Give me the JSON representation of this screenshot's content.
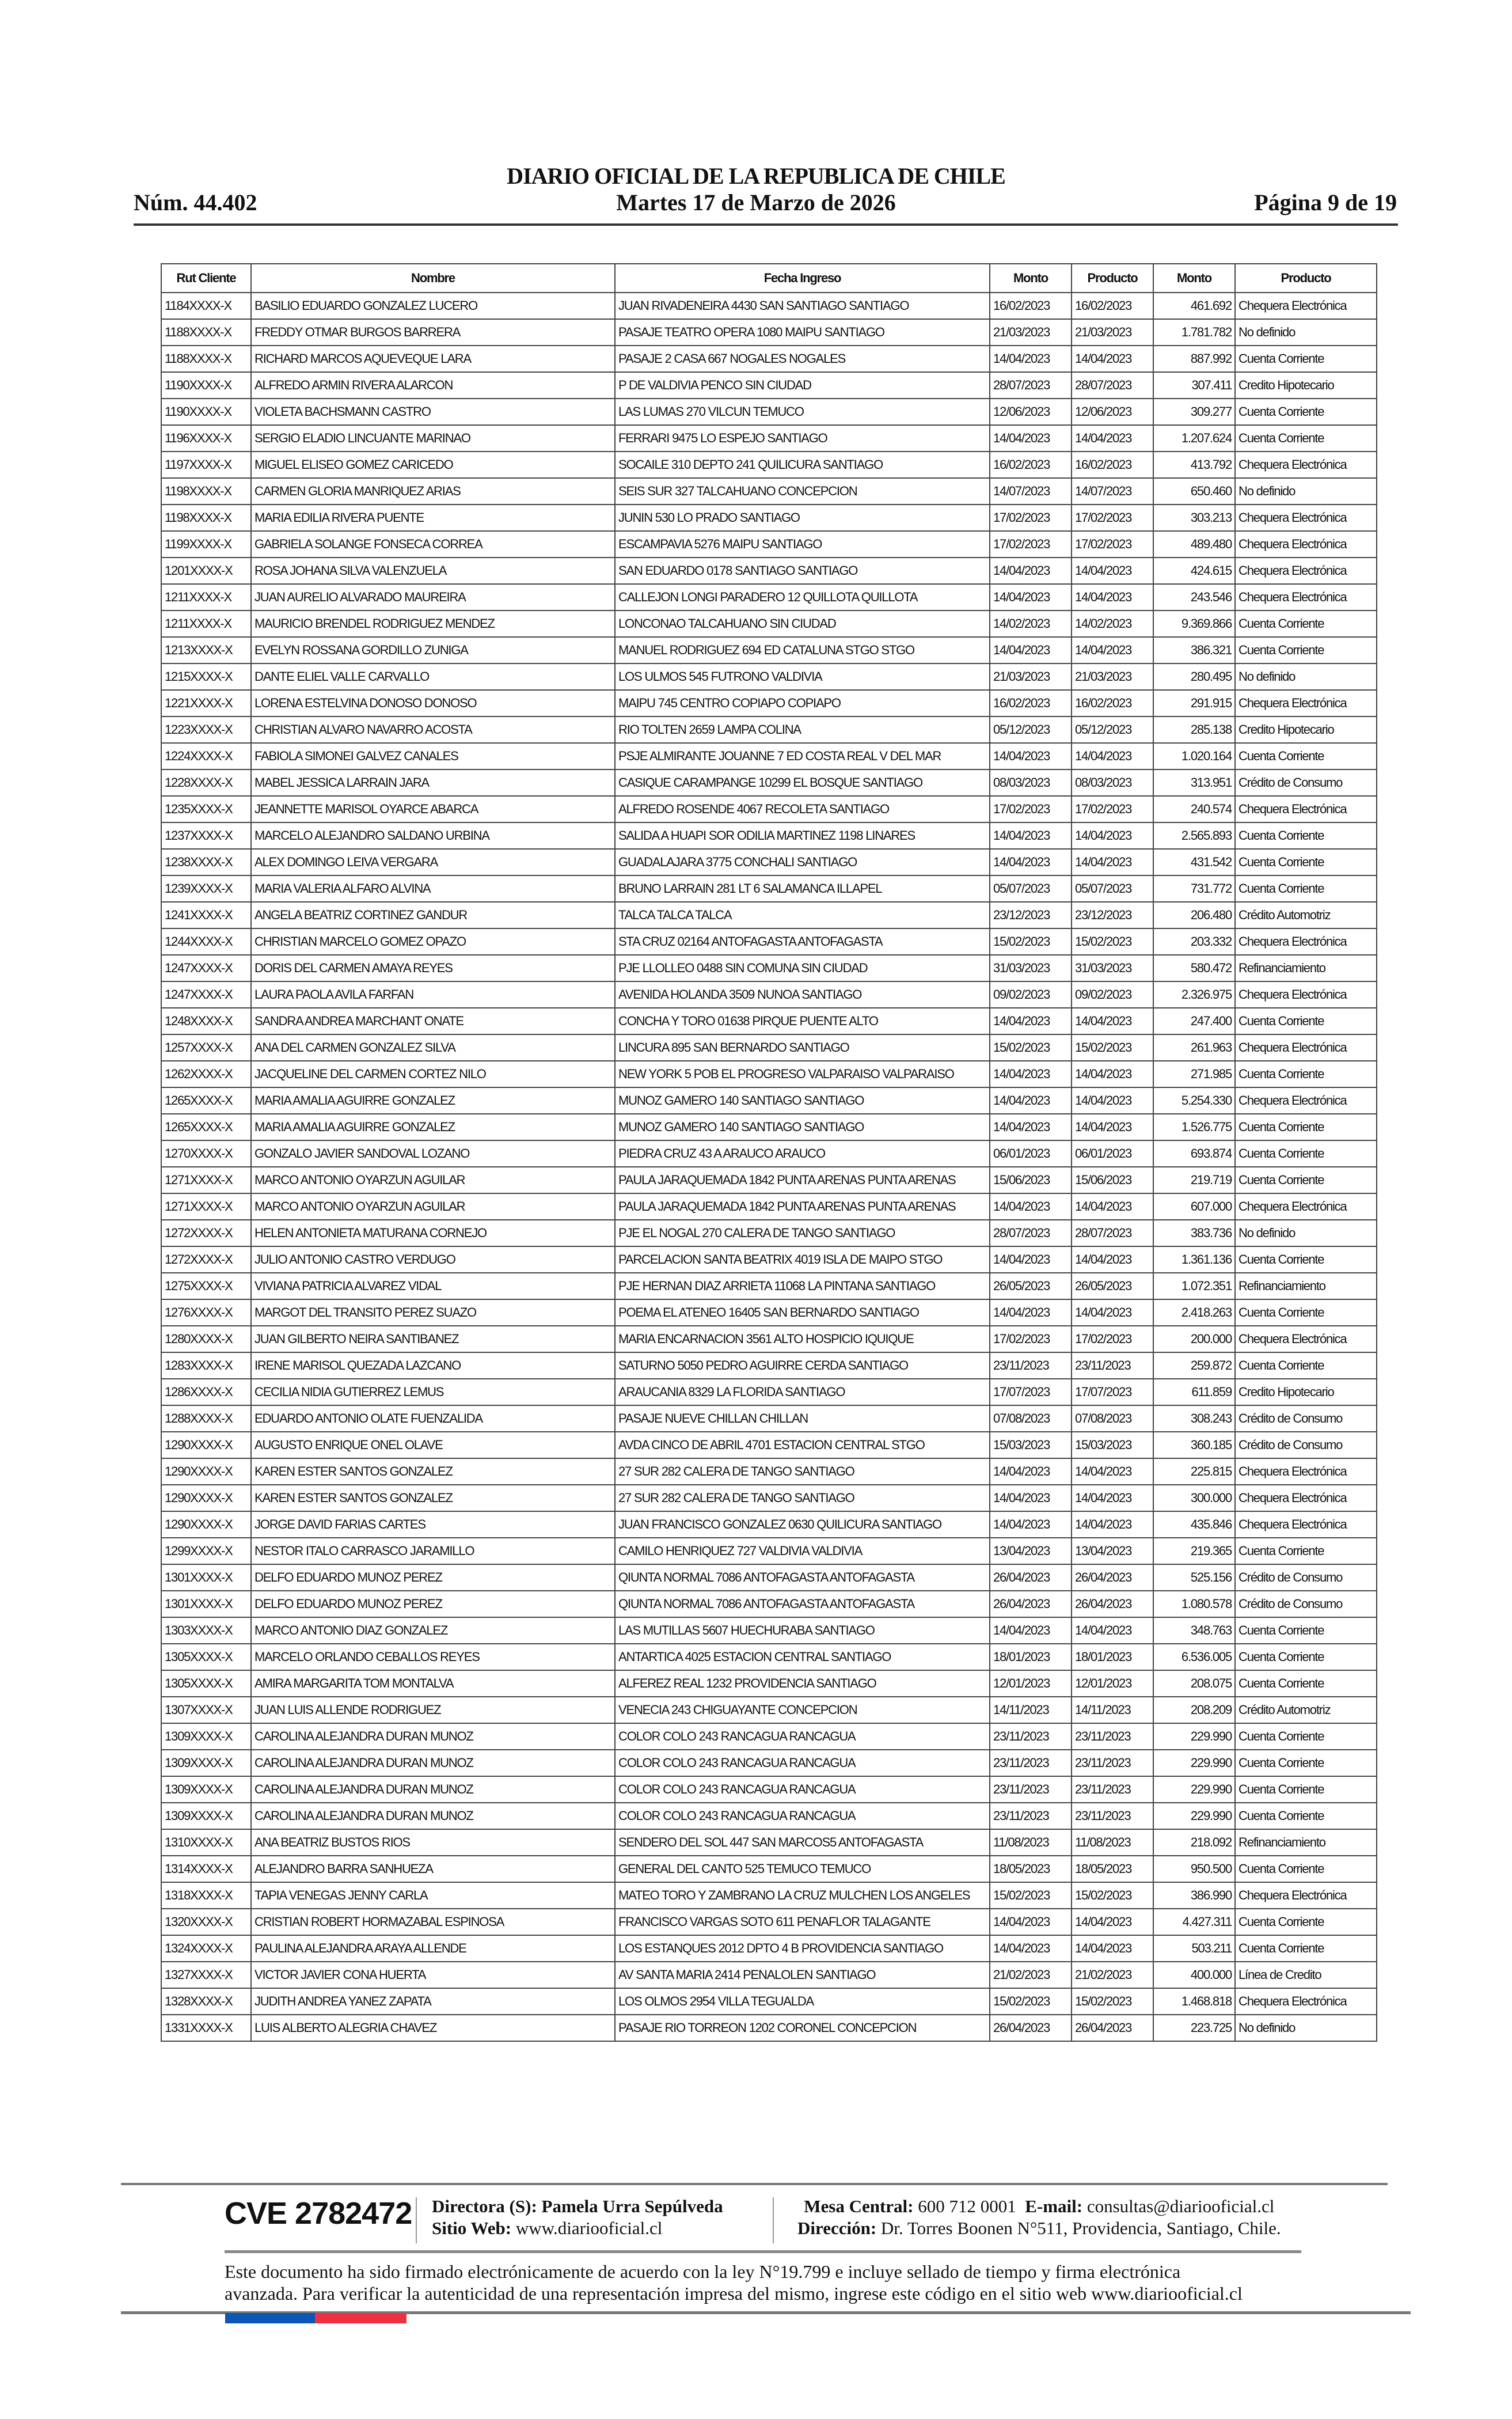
{
  "header": {
    "title": "DIARIO OFICIAL DE LA REPUBLICA DE CHILE",
    "number": "Núm. 44.402",
    "date": "Martes 17 de Marzo de 2026",
    "page": "Página 9 de 19"
  },
  "table": {
    "columns": [
      "Rut Cliente",
      "Nombre",
      "Fecha Ingreso",
      "Monto",
      "Producto",
      "Monto",
      "Producto"
    ],
    "rows": [
      [
        "1184XXXX-X",
        "BASILIO EDUARDO GONZALEZ LUCERO",
        "JUAN RIVADENEIRA 4430 SAN SANTIAGO SANTIAGO",
        "16/02/2023",
        "16/02/2023",
        "461.692",
        "Chequera Electrónica"
      ],
      [
        "1188XXXX-X",
        "FREDDY OTMAR BURGOS BARRERA",
        "PASAJE TEATRO OPERA 1080 MAIPU SANTIAGO",
        "21/03/2023",
        "21/03/2023",
        "1.781.782",
        "No definido"
      ],
      [
        "1188XXXX-X",
        "RICHARD MARCOS AQUEVEQUE LARA",
        "PASAJE 2 CASA 667 NOGALES NOGALES",
        "14/04/2023",
        "14/04/2023",
        "887.992",
        "Cuenta Corriente"
      ],
      [
        "1190XXXX-X",
        "ALFREDO ARMIN RIVERA ALARCON",
        "P DE VALDIVIA PENCO SIN CIUDAD",
        "28/07/2023",
        "28/07/2023",
        "307.411",
        "Credito Hipotecario"
      ],
      [
        "1190XXXX-X",
        "VIOLETA BACHSMANN CASTRO",
        "LAS LUMAS 270 VILCUN TEMUCO",
        "12/06/2023",
        "12/06/2023",
        "309.277",
        "Cuenta Corriente"
      ],
      [
        "1196XXXX-X",
        "SERGIO ELADIO LINCUANTE MARINAO",
        "FERRARI 9475 LO ESPEJO SANTIAGO",
        "14/04/2023",
        "14/04/2023",
        "1.207.624",
        "Cuenta Corriente"
      ],
      [
        "1197XXXX-X",
        "MIGUEL ELISEO GOMEZ CARICEDO",
        "SOCAILE 310 DEPTO 241 QUILICURA SANTIAGO",
        "16/02/2023",
        "16/02/2023",
        "413.792",
        "Chequera Electrónica"
      ],
      [
        "1198XXXX-X",
        "CARMEN GLORIA MANRIQUEZ ARIAS",
        "SEIS SUR 327 TALCAHUANO CONCEPCION",
        "14/07/2023",
        "14/07/2023",
        "650.460",
        "No definido"
      ],
      [
        "1198XXXX-X",
        "MARIA EDILIA RIVERA PUENTE",
        "JUNIN 530 LO PRADO SANTIAGO",
        "17/02/2023",
        "17/02/2023",
        "303.213",
        "Chequera Electrónica"
      ],
      [
        "1199XXXX-X",
        "GABRIELA SOLANGE FONSECA CORREA",
        "ESCAMPAVIA 5276 MAIPU SANTIAGO",
        "17/02/2023",
        "17/02/2023",
        "489.480",
        "Chequera Electrónica"
      ],
      [
        "1201XXXX-X",
        "ROSA JOHANA SILVA VALENZUELA",
        "SAN EDUARDO 0178 SANTIAGO SANTIAGO",
        "14/04/2023",
        "14/04/2023",
        "424.615",
        "Chequera Electrónica"
      ],
      [
        "1211XXXX-X",
        "JUAN AURELIO ALVARADO MAUREIRA",
        "CALLEJON LONGI PARADERO 12 QUILLOTA QUILLOTA",
        "14/04/2023",
        "14/04/2023",
        "243.546",
        "Chequera Electrónica"
      ],
      [
        "1211XXXX-X",
        "MAURICIO BRENDEL RODRIGUEZ MENDEZ",
        "LONCONAO TALCAHUANO SIN CIUDAD",
        "14/02/2023",
        "14/02/2023",
        "9.369.866",
        "Cuenta Corriente"
      ],
      [
        "1213XXXX-X",
        "EVELYN ROSSANA GORDILLO ZUNIGA",
        "MANUEL RODRIGUEZ 694 ED CATALUNA STGO STGO",
        "14/04/2023",
        "14/04/2023",
        "386.321",
        "Cuenta Corriente"
      ],
      [
        "1215XXXX-X",
        "DANTE ELIEL VALLE CARVALLO",
        "LOS ULMOS 545 FUTRONO VALDIVIA",
        "21/03/2023",
        "21/03/2023",
        "280.495",
        "No definido"
      ],
      [
        "1221XXXX-X",
        "LORENA ESTELVINA DONOSO DONOSO",
        "MAIPU 745 CENTRO COPIAPO COPIAPO",
        "16/02/2023",
        "16/02/2023",
        "291.915",
        "Chequera Electrónica"
      ],
      [
        "1223XXXX-X",
        "CHRISTIAN ALVARO NAVARRO ACOSTA",
        "RIO TOLTEN 2659 LAMPA COLINA",
        "05/12/2023",
        "05/12/2023",
        "285.138",
        "Credito Hipotecario"
      ],
      [
        "1224XXXX-X",
        "FABIOLA SIMONEI GALVEZ CANALES",
        "PSJE ALMIRANTE JOUANNE 7 ED COSTA REAL V DEL MAR",
        "14/04/2023",
        "14/04/2023",
        "1.020.164",
        "Cuenta Corriente"
      ],
      [
        "1228XXXX-X",
        "MABEL JESSICA LARRAIN JARA",
        "CASIQUE CARAMPANGE 10299 EL BOSQUE SANTIAGO",
        "08/03/2023",
        "08/03/2023",
        "313.951",
        "Crédito de Consumo"
      ],
      [
        "1235XXXX-X",
        "JEANNETTE MARISOL OYARCE ABARCA",
        "ALFREDO ROSENDE 4067 RECOLETA SANTIAGO",
        "17/02/2023",
        "17/02/2023",
        "240.574",
        "Chequera Electrónica"
      ],
      [
        "1237XXXX-X",
        "MARCELO ALEJANDRO SALDANO URBINA",
        "SALIDA A HUAPI SOR ODILIA MARTINEZ 1198 LINARES",
        "14/04/2023",
        "14/04/2023",
        "2.565.893",
        "Cuenta Corriente"
      ],
      [
        "1238XXXX-X",
        "ALEX DOMINGO LEIVA VERGARA",
        "GUADALAJARA 3775 CONCHALI SANTIAGO",
        "14/04/2023",
        "14/04/2023",
        "431.542",
        "Cuenta Corriente"
      ],
      [
        "1239XXXX-X",
        "MARIA VALERIA ALFARO ALVINA",
        "BRUNO LARRAIN 281 LT 6 SALAMANCA ILLAPEL",
        "05/07/2023",
        "05/07/2023",
        "731.772",
        "Cuenta Corriente"
      ],
      [
        "1241XXXX-X",
        "ANGELA BEATRIZ CORTINEZ GANDUR",
        "TALCA TALCA TALCA",
        "23/12/2023",
        "23/12/2023",
        "206.480",
        "Crédito Automotriz"
      ],
      [
        "1244XXXX-X",
        "CHRISTIAN MARCELO GOMEZ OPAZO",
        "STA CRUZ 02164 ANTOFAGASTA ANTOFAGASTA",
        "15/02/2023",
        "15/02/2023",
        "203.332",
        "Chequera Electrónica"
      ],
      [
        "1247XXXX-X",
        "DORIS DEL CARMEN AMAYA REYES",
        "PJE LLOLLEO 0488 SIN COMUNA SIN CIUDAD",
        "31/03/2023",
        "31/03/2023",
        "580.472",
        "Refinanciamiento"
      ],
      [
        "1247XXXX-X",
        "LAURA PAOLA AVILA FARFAN",
        "AVENIDA HOLANDA 3509 NUNOA SANTIAGO",
        "09/02/2023",
        "09/02/2023",
        "2.326.975",
        "Chequera Electrónica"
      ],
      [
        "1248XXXX-X",
        "SANDRA ANDREA MARCHANT ONATE",
        "CONCHA Y TORO 01638 PIRQUE PUENTE ALTO",
        "14/04/2023",
        "14/04/2023",
        "247.400",
        "Cuenta Corriente"
      ],
      [
        "1257XXXX-X",
        "ANA DEL CARMEN GONZALEZ SILVA",
        "LINCURA 895 SAN BERNARDO SANTIAGO",
        "15/02/2023",
        "15/02/2023",
        "261.963",
        "Chequera Electrónica"
      ],
      [
        "1262XXXX-X",
        "JACQUELINE DEL CARMEN CORTEZ NILO",
        "NEW YORK 5 POB EL PROGRESO VALPARAISO VALPARAISO",
        "14/04/2023",
        "14/04/2023",
        "271.985",
        "Cuenta Corriente"
      ],
      [
        "1265XXXX-X",
        "MARIA AMALIA AGUIRRE GONZALEZ",
        "MUNOZ GAMERO 140 SANTIAGO SANTIAGO",
        "14/04/2023",
        "14/04/2023",
        "5.254.330",
        "Chequera Electrónica"
      ],
      [
        "1265XXXX-X",
        "MARIA AMALIA AGUIRRE GONZALEZ",
        "MUNOZ GAMERO 140 SANTIAGO SANTIAGO",
        "14/04/2023",
        "14/04/2023",
        "1.526.775",
        "Cuenta Corriente"
      ],
      [
        "1270XXXX-X",
        "GONZALO JAVIER SANDOVAL LOZANO",
        "PIEDRA CRUZ 43 A ARAUCO ARAUCO",
        "06/01/2023",
        "06/01/2023",
        "693.874",
        "Cuenta Corriente"
      ],
      [
        "1271XXXX-X",
        "MARCO ANTONIO OYARZUN AGUILAR",
        "PAULA JARAQUEMADA 1842 PUNTA ARENAS PUNTA ARENAS",
        "15/06/2023",
        "15/06/2023",
        "219.719",
        "Cuenta Corriente"
      ],
      [
        "1271XXXX-X",
        "MARCO ANTONIO OYARZUN AGUILAR",
        "PAULA JARAQUEMADA 1842 PUNTA ARENAS PUNTA ARENAS",
        "14/04/2023",
        "14/04/2023",
        "607.000",
        "Chequera Electrónica"
      ],
      [
        "1272XXXX-X",
        "HELEN ANTONIETA MATURANA CORNEJO",
        "PJE EL NOGAL 270 CALERA DE TANGO SANTIAGO",
        "28/07/2023",
        "28/07/2023",
        "383.736",
        "No definido"
      ],
      [
        "1272XXXX-X",
        "JULIO ANTONIO CASTRO VERDUGO",
        "PARCELACION SANTA BEATRIX 4019 ISLA DE MAIPO STGO",
        "14/04/2023",
        "14/04/2023",
        "1.361.136",
        "Cuenta Corriente"
      ],
      [
        "1275XXXX-X",
        "VIVIANA PATRICIA ALVAREZ VIDAL",
        "PJE HERNAN DIAZ ARRIETA 11068 LA PINTANA SANTIAGO",
        "26/05/2023",
        "26/05/2023",
        "1.072.351",
        "Refinanciamiento"
      ],
      [
        "1276XXXX-X",
        "MARGOT DEL TRANSITO PEREZ SUAZO",
        "POEMA EL ATENEO 16405 SAN BERNARDO SANTIAGO",
        "14/04/2023",
        "14/04/2023",
        "2.418.263",
        "Cuenta Corriente"
      ],
      [
        "1280XXXX-X",
        "JUAN GILBERTO NEIRA SANTIBANEZ",
        "MARIA ENCARNACION 3561 ALTO HOSPICIO IQUIQUE",
        "17/02/2023",
        "17/02/2023",
        "200.000",
        "Chequera Electrónica"
      ],
      [
        "1283XXXX-X",
        "IRENE MARISOL QUEZADA LAZCANO",
        "SATURNO 5050 PEDRO AGUIRRE CERDA SANTIAGO",
        "23/11/2023",
        "23/11/2023",
        "259.872",
        "Cuenta Corriente"
      ],
      [
        "1286XXXX-X",
        "CECILIA NIDIA GUTIERREZ LEMUS",
        "ARAUCANIA 8329 LA FLORIDA SANTIAGO",
        "17/07/2023",
        "17/07/2023",
        "611.859",
        "Credito Hipotecario"
      ],
      [
        "1288XXXX-X",
        "EDUARDO ANTONIO OLATE FUENZALIDA",
        "PASAJE NUEVE CHILLAN CHILLAN",
        "07/08/2023",
        "07/08/2023",
        "308.243",
        "Crédito de Consumo"
      ],
      [
        "1290XXXX-X",
        "AUGUSTO ENRIQUE ONEL OLAVE",
        "AVDA CINCO DE ABRIL 4701 ESTACION CENTRAL STGO",
        "15/03/2023",
        "15/03/2023",
        "360.185",
        "Crédito de Consumo"
      ],
      [
        "1290XXXX-X",
        "KAREN ESTER SANTOS GONZALEZ",
        "27 SUR 282 CALERA DE TANGO SANTIAGO",
        "14/04/2023",
        "14/04/2023",
        "225.815",
        "Chequera Electrónica"
      ],
      [
        "1290XXXX-X",
        "KAREN ESTER SANTOS GONZALEZ",
        "27 SUR 282 CALERA DE TANGO SANTIAGO",
        "14/04/2023",
        "14/04/2023",
        "300.000",
        "Chequera Electrónica"
      ],
      [
        "1290XXXX-X",
        "JORGE DAVID FARIAS CARTES",
        "JUAN FRANCISCO GONZALEZ 0630 QUILICURA SANTIAGO",
        "14/04/2023",
        "14/04/2023",
        "435.846",
        "Chequera Electrónica"
      ],
      [
        "1299XXXX-X",
        "NESTOR ITALO CARRASCO JARAMILLO",
        "CAMILO HENRIQUEZ 727 VALDIVIA VALDIVIA",
        "13/04/2023",
        "13/04/2023",
        "219.365",
        "Cuenta Corriente"
      ],
      [
        "1301XXXX-X",
        "DELFO EDUARDO MUNOZ PEREZ",
        "QIUNTA NORMAL 7086 ANTOFAGASTA ANTOFAGASTA",
        "26/04/2023",
        "26/04/2023",
        "525.156",
        "Crédito de Consumo"
      ],
      [
        "1301XXXX-X",
        "DELFO EDUARDO MUNOZ PEREZ",
        "QIUNTA NORMAL 7086 ANTOFAGASTA ANTOFAGASTA",
        "26/04/2023",
        "26/04/2023",
        "1.080.578",
        "Crédito de Consumo"
      ],
      [
        "1303XXXX-X",
        "MARCO ANTONIO DIAZ GONZALEZ",
        "LAS MUTILLAS 5607 HUECHURABA SANTIAGO",
        "14/04/2023",
        "14/04/2023",
        "348.763",
        "Cuenta Corriente"
      ],
      [
        "1305XXXX-X",
        "MARCELO ORLANDO CEBALLOS REYES",
        "ANTARTICA 4025 ESTACION CENTRAL SANTIAGO",
        "18/01/2023",
        "18/01/2023",
        "6.536.005",
        "Cuenta Corriente"
      ],
      [
        "1305XXXX-X",
        "AMIRA MARGARITA TOM MONTALVA",
        "ALFEREZ REAL 1232 PROVIDENCIA SANTIAGO",
        "12/01/2023",
        "12/01/2023",
        "208.075",
        "Cuenta Corriente"
      ],
      [
        "1307XXXX-X",
        "JUAN LUIS ALLENDE RODRIGUEZ",
        "VENECIA 243 CHIGUAYANTE CONCEPCION",
        "14/11/2023",
        "14/11/2023",
        "208.209",
        "Crédito Automotriz"
      ],
      [
        "1309XXXX-X",
        "CAROLINA ALEJANDRA DURAN MUNOZ",
        "COLOR COLO 243 RANCAGUA RANCAGUA",
        "23/11/2023",
        "23/11/2023",
        "229.990",
        "Cuenta Corriente"
      ],
      [
        "1309XXXX-X",
        "CAROLINA ALEJANDRA DURAN MUNOZ",
        "COLOR COLO 243 RANCAGUA RANCAGUA",
        "23/11/2023",
        "23/11/2023",
        "229.990",
        "Cuenta Corriente"
      ],
      [
        "1309XXXX-X",
        "CAROLINA ALEJANDRA DURAN MUNOZ",
        "COLOR COLO 243 RANCAGUA RANCAGUA",
        "23/11/2023",
        "23/11/2023",
        "229.990",
        "Cuenta Corriente"
      ],
      [
        "1309XXXX-X",
        "CAROLINA ALEJANDRA DURAN MUNOZ",
        "COLOR COLO 243 RANCAGUA RANCAGUA",
        "23/11/2023",
        "23/11/2023",
        "229.990",
        "Cuenta Corriente"
      ],
      [
        "1310XXXX-X",
        "ANA BEATRIZ BUSTOS RIOS",
        "SENDERO DEL SOL 447 SAN MARCOS5 ANTOFAGASTA",
        "11/08/2023",
        "11/08/2023",
        "218.092",
        "Refinanciamiento"
      ],
      [
        "1314XXXX-X",
        "ALEJANDRO BARRA SANHUEZA",
        "GENERAL DEL CANTO 525 TEMUCO TEMUCO",
        "18/05/2023",
        "18/05/2023",
        "950.500",
        "Cuenta Corriente"
      ],
      [
        "1318XXXX-X",
        "TAPIA VENEGAS JENNY CARLA",
        "MATEO TORO Y ZAMBRANO LA CRUZ MULCHEN LOS ANGELES",
        "15/02/2023",
        "15/02/2023",
        "386.990",
        "Chequera Electrónica"
      ],
      [
        "1320XXXX-X",
        "CRISTIAN ROBERT HORMAZABAL ESPINOSA",
        "FRANCISCO VARGAS SOTO 611 PENAFLOR TALAGANTE",
        "14/04/2023",
        "14/04/2023",
        "4.427.311",
        "Cuenta Corriente"
      ],
      [
        "1324XXXX-X",
        "PAULINA ALEJANDRA ARAYA ALLENDE",
        "LOS ESTANQUES 2012 DPTO 4 B PROVIDENCIA SANTIAGO",
        "14/04/2023",
        "14/04/2023",
        "503.211",
        "Cuenta Corriente"
      ],
      [
        "1327XXXX-X",
        "VICTOR JAVIER CONA HUERTA",
        "AV SANTA MARIA 2414 PENALOLEN SANTIAGO",
        "21/02/2023",
        "21/02/2023",
        "400.000",
        "Línea de Credito"
      ],
      [
        "1328XXXX-X",
        "JUDITH ANDREA YANEZ ZAPATA",
        "LOS OLMOS 2954 VILLA TEGUALDA",
        "15/02/2023",
        "15/02/2023",
        "1.468.818",
        "Chequera Electrónica"
      ],
      [
        "1331XXXX-X",
        "LUIS ALBERTO ALEGRIA CHAVEZ",
        "PASAJE RIO TORREON 1202 CORONEL CONCEPCION",
        "26/04/2023",
        "26/04/2023",
        "223.725",
        "No definido"
      ]
    ]
  },
  "footer": {
    "cve": "CVE 2782472",
    "director_label": "Directora (S):",
    "director_name": "Pamela Urra Sepúlveda",
    "web_label": "Sitio Web:",
    "web_value": "www.diariooficial.cl",
    "phone_label": "Mesa Central:",
    "phone_value": "600 712 0001",
    "email_label": "E-mail:",
    "email_value": "consultas@diariooficial.cl",
    "address_label": "Dirección:",
    "address_value": "Dr. Torres Boonen N°511, Providencia, Santiago, Chile.",
    "legal_line1": "Este documento ha sido firmado electrónicamente de acuerdo con la ley N°19.799 e incluye sellado de tiempo y firma electrónica",
    "legal_line2": "avanzada. Para verificar la autenticidad de una representación impresa del mismo, ingrese este código en el sitio web www.diariooficial.cl",
    "flag_colors": [
      "#0a57b5",
      "#ee3142"
    ]
  }
}
